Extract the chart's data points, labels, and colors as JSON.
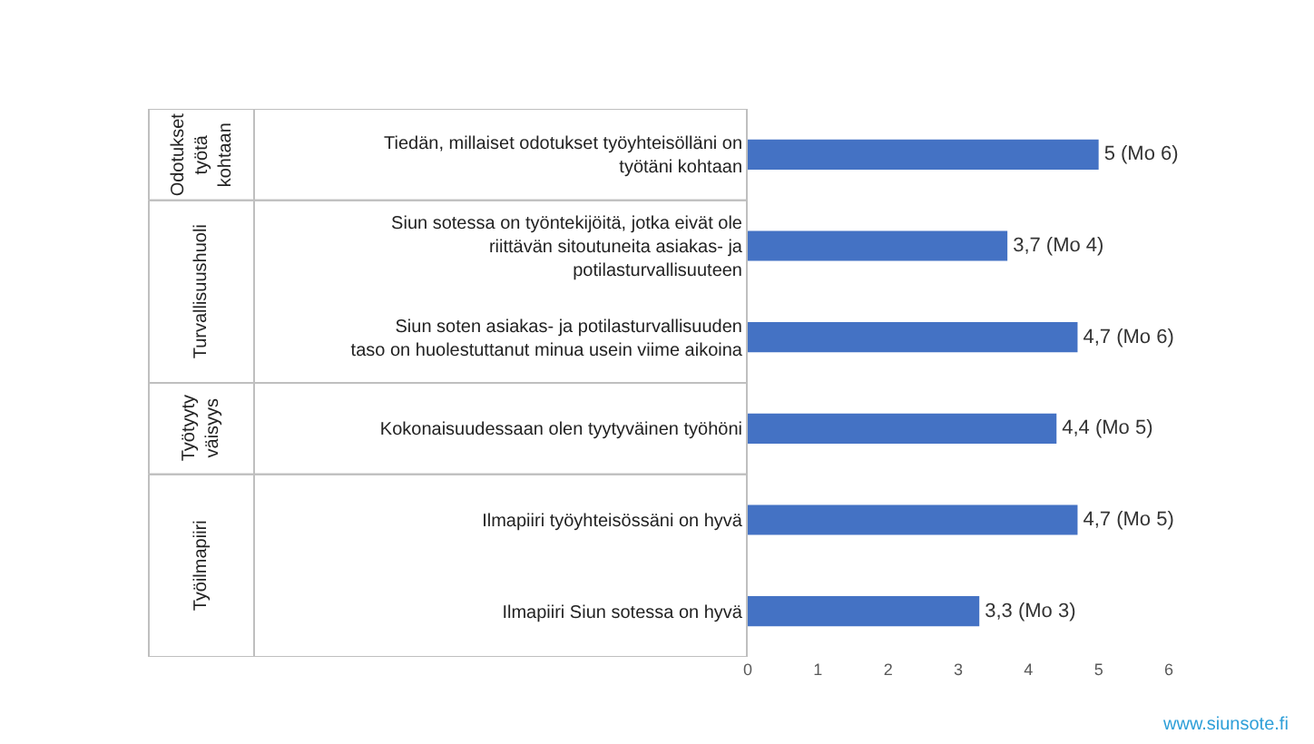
{
  "chart_data": {
    "type": "bar",
    "orientation": "horizontal",
    "categories": [
      "Tiedän, millaiset odotukset työyhteisölläni on työtäni kohtaan",
      "Siun sotessa on työntekijöitä, jotka eivät ole riittävän sitoutuneita asiakas- ja potilasturvallisuuteen",
      "Siun soten asiakas- ja potilasturvallisuuden taso on huolestuttanut minua usein viime aikoina",
      "Kokonaisuudessaan olen tyytyväinen työhöni",
      "Ilmapiiri työyhteisössäni on hyvä",
      "Ilmapiiri Siun sotessa on hyvä"
    ],
    "values": [
      5,
      3.7,
      4.7,
      4.4,
      4.7,
      3.3
    ],
    "value_labels": [
      "5 (Mo 6)",
      "3,7 (Mo 4)",
      "4,7 (Mo 6)",
      "4,4 (Mo 5)",
      "4,7 (Mo 5)",
      "3,3 (Mo 3)"
    ],
    "color": "#4472c4",
    "xlim": [
      0,
      6
    ],
    "xticks": [
      0,
      1,
      2,
      3,
      4,
      5,
      6
    ],
    "grid": false,
    "annotations": [
      "Odotukset työtä kohtaan",
      "Turvallisuushuoli",
      "Työtyytyväisyys",
      "Työilmapiiri",
      "www.siunsote.fi"
    ]
  }
}
